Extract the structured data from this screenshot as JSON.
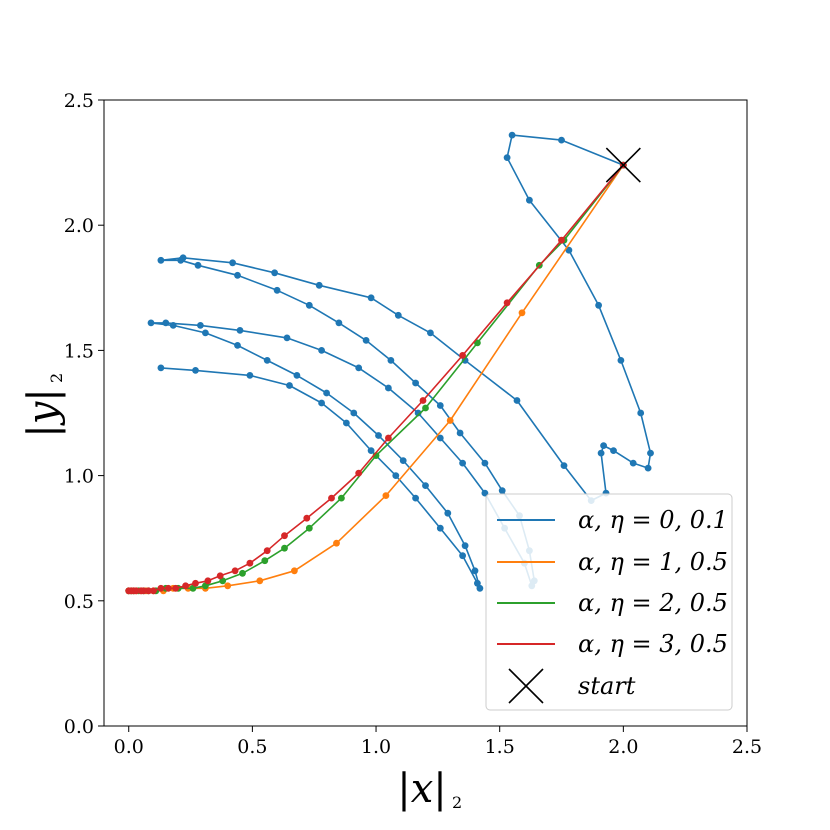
{
  "chart_data": {
    "type": "line",
    "xlabel": "|x|",
    "xlabel_sub": "2",
    "ylabel": "|y|",
    "ylabel_sub": "2",
    "xlim": [
      -0.1,
      2.5
    ],
    "ylim": [
      0.0,
      2.5
    ],
    "xticks": [
      0.0,
      0.5,
      1.0,
      1.5,
      2.0,
      2.5
    ],
    "yticks": [
      0.0,
      0.5,
      1.0,
      1.5,
      2.0,
      2.5
    ],
    "xtick_labels": [
      "0.0",
      "0.5",
      "1.0",
      "1.5",
      "2.0",
      "2.5"
    ],
    "ytick_labels": [
      "0.0",
      "0.5",
      "1.0",
      "1.5",
      "2.0",
      "2.5"
    ],
    "grid": false,
    "legend_position": "lower-right",
    "start": {
      "x": 2.0,
      "y": 2.24,
      "label": "start",
      "color": "#000000"
    },
    "series": [
      {
        "name": "α, η = 0, 0.1",
        "color": "#1f77b4",
        "points": [
          [
            2.0,
            2.24
          ],
          [
            1.75,
            2.34
          ],
          [
            1.55,
            2.36
          ],
          [
            1.53,
            2.27
          ],
          [
            1.62,
            2.1
          ],
          [
            1.78,
            1.9
          ],
          [
            1.9,
            1.68
          ],
          [
            1.99,
            1.46
          ],
          [
            2.07,
            1.25
          ],
          [
            2.11,
            1.09
          ],
          [
            2.1,
            1.03
          ],
          [
            2.04,
            1.05
          ],
          [
            1.96,
            1.1
          ],
          [
            1.92,
            1.12
          ],
          [
            1.91,
            1.09
          ],
          [
            1.93,
            0.93
          ],
          [
            1.87,
            0.9
          ],
          [
            1.76,
            1.04
          ],
          [
            1.57,
            1.3
          ],
          [
            1.36,
            1.46
          ],
          [
            1.22,
            1.57
          ],
          [
            1.09,
            1.64
          ],
          [
            0.98,
            1.71
          ],
          [
            0.77,
            1.76
          ],
          [
            0.59,
            1.81
          ],
          [
            0.42,
            1.85
          ],
          [
            0.22,
            1.87
          ],
          [
            0.13,
            1.86
          ],
          [
            0.21,
            1.86
          ],
          [
            0.28,
            1.84
          ],
          [
            0.44,
            1.8
          ],
          [
            0.6,
            1.74
          ],
          [
            0.73,
            1.68
          ],
          [
            0.85,
            1.61
          ],
          [
            0.96,
            1.54
          ],
          [
            1.06,
            1.46
          ],
          [
            1.16,
            1.37
          ],
          [
            1.26,
            1.28
          ],
          [
            1.34,
            1.17
          ],
          [
            1.44,
            1.05
          ],
          [
            1.51,
            0.94
          ],
          [
            1.58,
            0.84
          ],
          [
            1.62,
            0.7
          ],
          [
            1.64,
            0.58
          ],
          [
            1.63,
            0.56
          ],
          [
            1.6,
            0.65
          ],
          [
            1.52,
            0.79
          ],
          [
            1.44,
            0.93
          ],
          [
            1.35,
            1.05
          ],
          [
            1.26,
            1.15
          ],
          [
            1.17,
            1.25
          ],
          [
            1.05,
            1.35
          ],
          [
            0.93,
            1.43
          ],
          [
            0.78,
            1.5
          ],
          [
            0.64,
            1.55
          ],
          [
            0.45,
            1.58
          ],
          [
            0.29,
            1.6
          ],
          [
            0.15,
            1.61
          ],
          [
            0.09,
            1.61
          ],
          [
            0.18,
            1.6
          ],
          [
            0.31,
            1.57
          ],
          [
            0.44,
            1.52
          ],
          [
            0.56,
            1.46
          ],
          [
            0.68,
            1.4
          ],
          [
            0.8,
            1.33
          ],
          [
            0.91,
            1.25
          ],
          [
            1.01,
            1.16
          ],
          [
            1.11,
            1.06
          ],
          [
            1.2,
            0.96
          ],
          [
            1.29,
            0.85
          ],
          [
            1.36,
            0.72
          ],
          [
            1.4,
            0.62
          ],
          [
            1.42,
            0.55
          ],
          [
            1.41,
            0.57
          ],
          [
            1.35,
            0.68
          ],
          [
            1.26,
            0.79
          ],
          [
            1.16,
            0.91
          ],
          [
            1.08,
            1.0
          ],
          [
            0.98,
            1.1
          ],
          [
            0.88,
            1.21
          ],
          [
            0.78,
            1.29
          ],
          [
            0.65,
            1.36
          ],
          [
            0.49,
            1.4
          ],
          [
            0.27,
            1.42
          ],
          [
            0.13,
            1.43
          ]
        ]
      },
      {
        "name": "α, η = 1, 0.5",
        "color": "#ff7f0e",
        "points": [
          [
            2.0,
            2.24
          ],
          [
            1.59,
            1.65
          ],
          [
            1.3,
            1.22
          ],
          [
            1.04,
            0.92
          ],
          [
            0.84,
            0.73
          ],
          [
            0.67,
            0.62
          ],
          [
            0.53,
            0.58
          ],
          [
            0.4,
            0.56
          ],
          [
            0.31,
            0.55
          ],
          [
            0.24,
            0.55
          ],
          [
            0.18,
            0.55
          ],
          [
            0.14,
            0.54
          ],
          [
            0.1,
            0.54
          ],
          [
            0.07,
            0.54
          ],
          [
            0.05,
            0.54
          ],
          [
            0.03,
            0.54
          ],
          [
            0.02,
            0.54
          ],
          [
            0.01,
            0.54
          ],
          [
            0.0,
            0.54
          ]
        ]
      },
      {
        "name": "α, η = 2, 0.5",
        "color": "#2ca02c",
        "points": [
          [
            2.0,
            2.24
          ],
          [
            1.76,
            1.94
          ],
          [
            1.66,
            1.84
          ],
          [
            1.41,
            1.53
          ],
          [
            1.2,
            1.27
          ],
          [
            1.0,
            1.08
          ],
          [
            0.86,
            0.91
          ],
          [
            0.73,
            0.79
          ],
          [
            0.63,
            0.71
          ],
          [
            0.55,
            0.66
          ],
          [
            0.46,
            0.61
          ],
          [
            0.38,
            0.58
          ],
          [
            0.31,
            0.56
          ],
          [
            0.26,
            0.55
          ],
          [
            0.2,
            0.55
          ],
          [
            0.15,
            0.55
          ],
          [
            0.11,
            0.54
          ],
          [
            0.08,
            0.54
          ],
          [
            0.06,
            0.54
          ],
          [
            0.04,
            0.54
          ],
          [
            0.02,
            0.54
          ],
          [
            0.01,
            0.54
          ],
          [
            0.0,
            0.54
          ]
        ]
      },
      {
        "name": "α, η = 3, 0.5",
        "color": "#d62728",
        "points": [
          [
            2.0,
            2.24
          ],
          [
            1.75,
            1.94
          ],
          [
            1.53,
            1.69
          ],
          [
            1.35,
            1.48
          ],
          [
            1.19,
            1.3
          ],
          [
            1.05,
            1.15
          ],
          [
            0.93,
            1.01
          ],
          [
            0.82,
            0.91
          ],
          [
            0.72,
            0.83
          ],
          [
            0.63,
            0.76
          ],
          [
            0.56,
            0.7
          ],
          [
            0.49,
            0.65
          ],
          [
            0.43,
            0.62
          ],
          [
            0.37,
            0.6
          ],
          [
            0.32,
            0.58
          ],
          [
            0.27,
            0.57
          ],
          [
            0.23,
            0.56
          ],
          [
            0.19,
            0.55
          ],
          [
            0.16,
            0.55
          ],
          [
            0.13,
            0.55
          ],
          [
            0.1,
            0.54
          ],
          [
            0.08,
            0.54
          ],
          [
            0.06,
            0.54
          ],
          [
            0.05,
            0.54
          ],
          [
            0.03,
            0.54
          ],
          [
            0.02,
            0.54
          ],
          [
            0.01,
            0.54
          ],
          [
            0.0,
            0.54
          ]
        ]
      }
    ]
  }
}
